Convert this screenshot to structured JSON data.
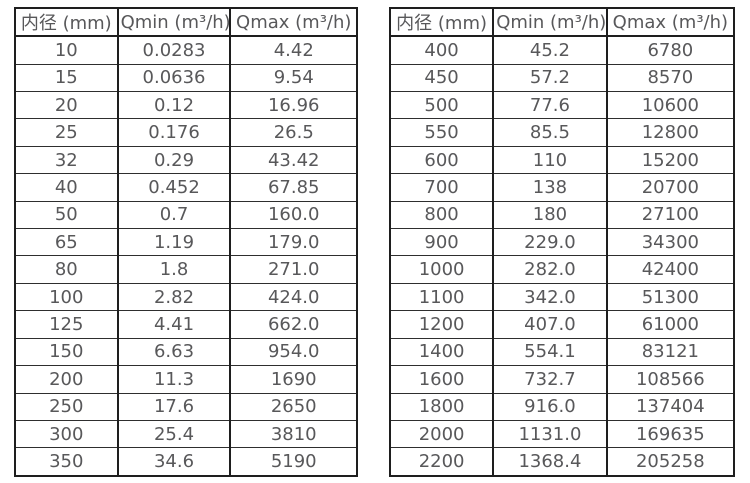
{
  "page": {
    "background_color": "#ffffff",
    "text_color": "#58585a",
    "border_color": "#1e1e1e"
  },
  "tables": [
    {
      "id": "small-diameter-flow-table",
      "headers": [
        "内径 (mm)",
        "Qmin (m³/h)",
        "Qmax (m³/h)"
      ],
      "rows": [
        [
          "10",
          "0.0283",
          "4.42"
        ],
        [
          "15",
          "0.0636",
          "9.54"
        ],
        [
          "20",
          "0.12",
          "16.96"
        ],
        [
          "25",
          "0.176",
          "26.5"
        ],
        [
          "32",
          "0.29",
          "43.42"
        ],
        [
          "40",
          "0.452",
          "67.85"
        ],
        [
          "50",
          "0.7",
          "160.0"
        ],
        [
          "65",
          "1.19",
          "179.0"
        ],
        [
          "80",
          "1.8",
          "271.0"
        ],
        [
          "100",
          "2.82",
          "424.0"
        ],
        [
          "125",
          "4.41",
          "662.0"
        ],
        [
          "150",
          "6.63",
          "954.0"
        ],
        [
          "200",
          "11.3",
          "1690"
        ],
        [
          "250",
          "17.6",
          "2650"
        ],
        [
          "300",
          "25.4",
          "3810"
        ],
        [
          "350",
          "34.6",
          "5190"
        ]
      ]
    },
    {
      "id": "large-diameter-flow-table",
      "headers": [
        "内径 (mm)",
        "Qmin (m³/h)",
        "Qmax (m³/h)"
      ],
      "rows": [
        [
          "400",
          "45.2",
          "6780"
        ],
        [
          "450",
          "57.2",
          "8570"
        ],
        [
          "500",
          "77.6",
          "10600"
        ],
        [
          "550",
          "85.5",
          "12800"
        ],
        [
          "600",
          "110",
          "15200"
        ],
        [
          "700",
          "138",
          "20700"
        ],
        [
          "800",
          "180",
          "27100"
        ],
        [
          "900",
          "229.0",
          "34300"
        ],
        [
          "1000",
          "282.0",
          "42400"
        ],
        [
          "1100",
          "342.0",
          "51300"
        ],
        [
          "1200",
          "407.0",
          "61000"
        ],
        [
          "1400",
          "554.1",
          "83121"
        ],
        [
          "1600",
          "732.7",
          "108566"
        ],
        [
          "1800",
          "916.0",
          "137404"
        ],
        [
          "2000",
          "1131.0",
          "169635"
        ],
        [
          "2200",
          "1368.4",
          "205258"
        ]
      ]
    }
  ]
}
